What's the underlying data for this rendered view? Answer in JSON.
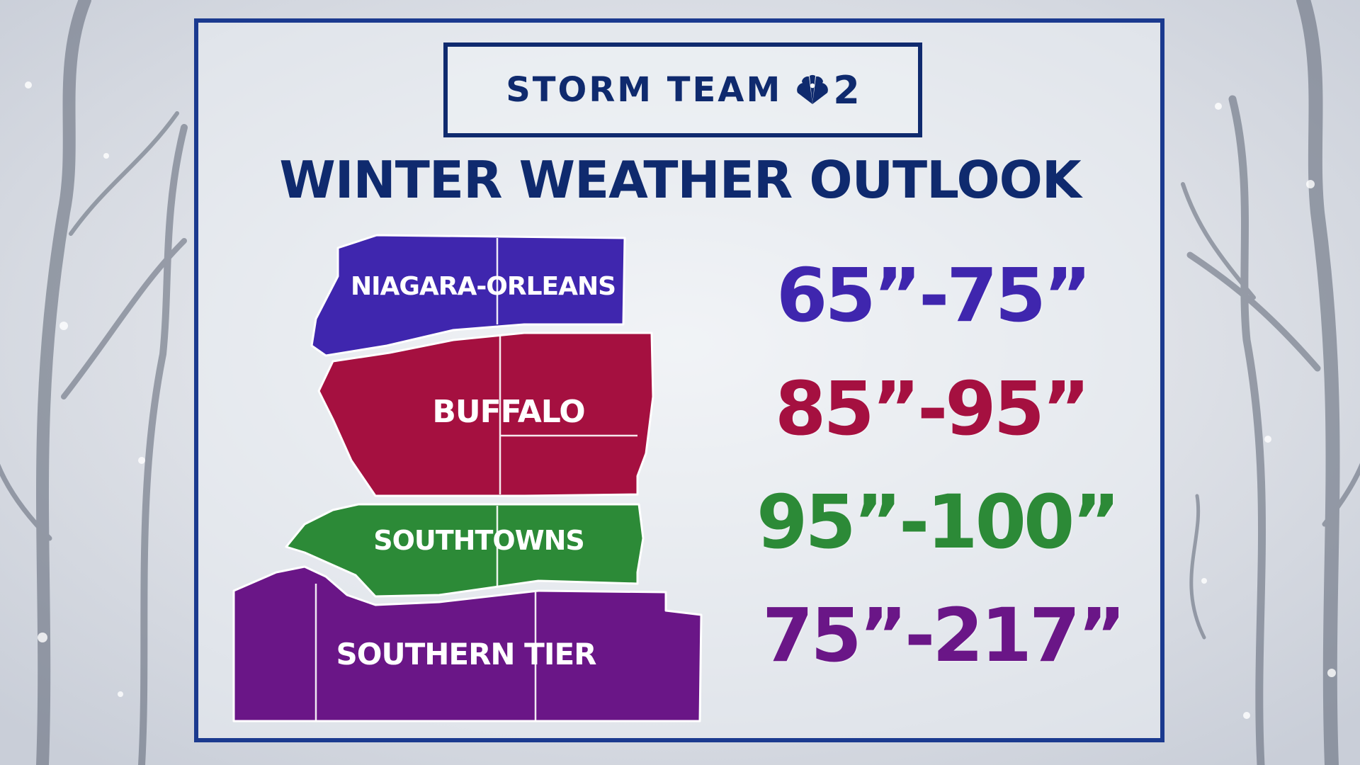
{
  "brand": {
    "name": "STORM TEAM",
    "number": "2"
  },
  "title": "WINTER WEATHER OUTLOOK",
  "regions": [
    {
      "name": "NIAGARA-ORLEANS",
      "total": "65”-75”",
      "color": "#3f26ae"
    },
    {
      "name": "BUFFALO",
      "total": "85”-95”",
      "color": "#a51040"
    },
    {
      "name": "SOUTHTOWNS",
      "total": "95”-100”",
      "color": "#2c8a37"
    },
    {
      "name": "SOUTHERN TIER",
      "total": "75”-217”",
      "color": "#6a1687"
    }
  ],
  "colors": {
    "frame": "#1b3a8f",
    "navy": "#0f2a6e"
  },
  "icons": [
    "peacock-icon"
  ]
}
